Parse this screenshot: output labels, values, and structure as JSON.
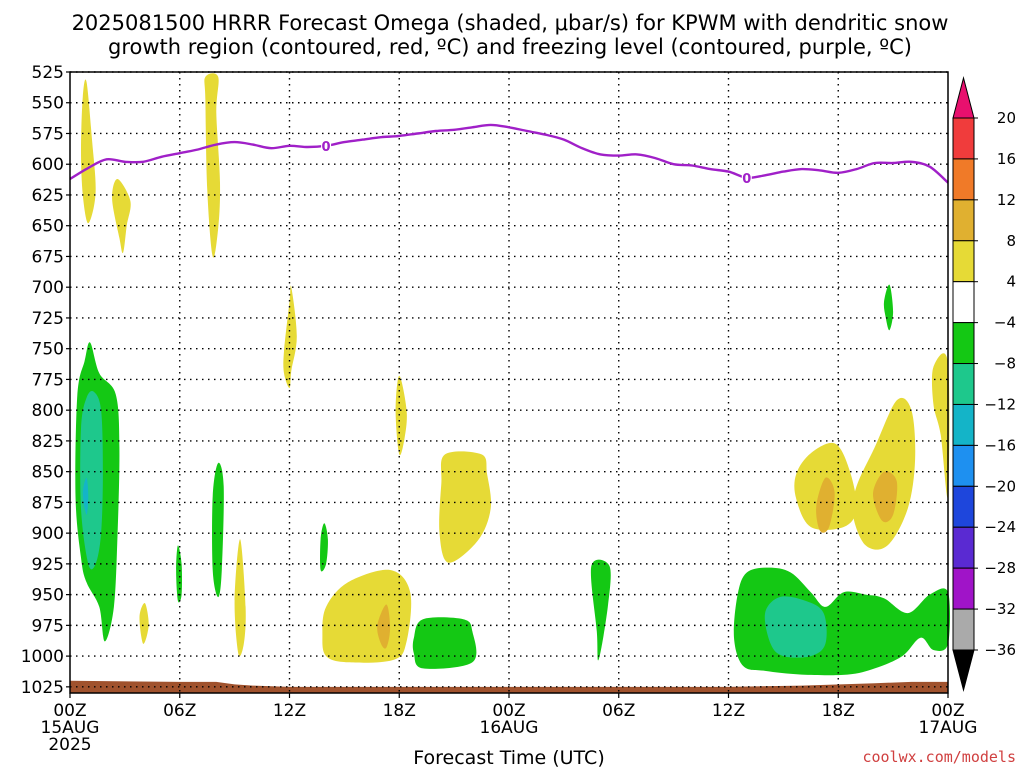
{
  "chart_data": {
    "type": "time-height cross section",
    "title_line1": "2025081500 HRRR Forecast Omega (shaded, μbar/s) for KPWM with dendritic snow",
    "title_line2": "growth region (contoured, red, ºC) and freezing level (contoured, purple, ºC)",
    "xlabel": "Forecast Time (UTC)",
    "credit": "coolwx.com/models",
    "grid": true,
    "y_axis": {
      "ticks": [
        525,
        550,
        575,
        600,
        625,
        650,
        675,
        700,
        725,
        750,
        775,
        800,
        825,
        850,
        875,
        900,
        925,
        950,
        975,
        1000,
        1025
      ],
      "tick_labels": [
        "525",
        "550",
        "575",
        "600",
        "625",
        "650",
        "675",
        "700",
        "725",
        "750",
        "775",
        "800",
        "825",
        "850",
        "875",
        "900",
        "925",
        "950",
        "975",
        "1000",
        "1025"
      ],
      "range": [
        525,
        1030
      ],
      "direction": "pressure decreasing upward"
    },
    "x_axis": {
      "range_hours": [
        0,
        48
      ],
      "ticks": [
        {
          "hour": 0,
          "l1": "00Z",
          "l2": "15AUG",
          "l3": "2025"
        },
        {
          "hour": 6,
          "l1": "06Z",
          "l2": "",
          "l3": ""
        },
        {
          "hour": 12,
          "l1": "12Z",
          "l2": "",
          "l3": ""
        },
        {
          "hour": 18,
          "l1": "18Z",
          "l2": "",
          "l3": ""
        },
        {
          "hour": 24,
          "l1": "00Z",
          "l2": "16AUG",
          "l3": ""
        },
        {
          "hour": 30,
          "l1": "06Z",
          "l2": "",
          "l3": ""
        },
        {
          "hour": 36,
          "l1": "12Z",
          "l2": "",
          "l3": ""
        },
        {
          "hour": 42,
          "l1": "18Z",
          "l2": "",
          "l3": ""
        },
        {
          "hour": 48,
          "l1": "00Z",
          "l2": "17AUG",
          "l3": ""
        }
      ]
    },
    "colorbar": {
      "levels": [
        "20",
        "16",
        "12",
        "8",
        "4",
        "−4",
        "−8",
        "−12",
        "−16",
        "−20",
        "−24",
        "−28",
        "−32",
        "−36"
      ],
      "colors": [
        "#e8106e",
        "#f03c3c",
        "#f07a28",
        "#e0b030",
        "#e6da36",
        "#ffffff",
        "#14c814",
        "#1ec88c",
        "#14b4c8",
        "#1e90f0",
        "#1e46dc",
        "#5a2ad2",
        "#a014c8",
        "#aaaaaa",
        "#000000"
      ]
    },
    "freezing_level": {
      "color": "#a020c8",
      "label": "0",
      "x": [
        0,
        1,
        2,
        3,
        4,
        5,
        6,
        7,
        8,
        9,
        10,
        11,
        12,
        13,
        14,
        15,
        16,
        17,
        18,
        19,
        20,
        21,
        22,
        23,
        24,
        25,
        26,
        27,
        28,
        29,
        30,
        31,
        32,
        33,
        34,
        35,
        36,
        37,
        38,
        39,
        40,
        41,
        42,
        43,
        44,
        45,
        46,
        47,
        48
      ],
      "y": [
        612,
        603,
        596,
        598,
        598,
        594,
        591,
        588,
        584,
        582,
        584,
        587,
        585,
        586,
        585,
        582,
        580,
        578,
        577,
        575,
        573,
        572,
        570,
        568,
        570,
        573,
        576,
        580,
        587,
        592,
        593,
        592,
        595,
        600,
        601,
        604,
        606,
        611,
        609,
        606,
        604,
        605,
        607,
        604,
        599,
        599,
        598,
        602,
        615
      ]
    },
    "omega_regions": [
      {
        "level": "4",
        "color": "#e6da36",
        "points": [
          [
            0.6,
            588
          ],
          [
            0.7,
            545
          ],
          [
            0.9,
            533
          ],
          [
            1.2,
            580
          ],
          [
            1.4,
            623
          ],
          [
            1.0,
            648
          ],
          [
            0.7,
            625
          ]
        ]
      },
      {
        "level": "4",
        "color": "#e6da36",
        "points": [
          [
            2.3,
            628
          ],
          [
            2.6,
            612
          ],
          [
            3.3,
            630
          ],
          [
            3.1,
            650
          ],
          [
            2.9,
            672
          ],
          [
            2.7,
            660
          ]
        ]
      },
      {
        "level": "4",
        "color": "#e6da36",
        "points": [
          [
            7.4,
            548
          ],
          [
            7.4,
            529
          ],
          [
            8.1,
            529
          ],
          [
            8.0,
            558
          ],
          [
            8.2,
            615
          ],
          [
            8.1,
            652
          ],
          [
            7.8,
            675
          ],
          [
            7.5,
            620
          ]
        ]
      },
      {
        "level": "4",
        "color": "#e6da36",
        "points": [
          [
            11.7,
            752
          ],
          [
            12.0,
            712
          ],
          [
            12.1,
            700
          ],
          [
            12.4,
            740
          ],
          [
            12.1,
            768
          ],
          [
            12.0,
            782
          ],
          [
            11.7,
            770
          ]
        ]
      },
      {
        "level": "4",
        "color": "#e6da36",
        "points": [
          [
            17.8,
            800
          ],
          [
            18.0,
            772
          ],
          [
            18.4,
            800
          ],
          [
            18.3,
            822
          ],
          [
            18.0,
            836
          ]
        ]
      },
      {
        "level": "4",
        "color": "#e6da36",
        "points": [
          [
            20.5,
            836
          ],
          [
            22.5,
            836
          ],
          [
            22.8,
            852
          ],
          [
            23.0,
            880
          ],
          [
            22.3,
            906
          ],
          [
            20.7,
            924
          ],
          [
            20.2,
            900
          ],
          [
            20.3,
            860
          ]
        ]
      },
      {
        "level": "4",
        "color": "#e6da36",
        "points": [
          [
            14.0,
            960
          ],
          [
            15.2,
            940
          ],
          [
            17.5,
            930
          ],
          [
            18.6,
            948
          ],
          [
            18.4,
            988
          ],
          [
            17.7,
            1003
          ],
          [
            15.2,
            1005
          ],
          [
            14.0,
            1000
          ],
          [
            13.8,
            983
          ]
        ]
      },
      {
        "level": "4",
        "color": "#e6da36",
        "points": [
          [
            3.8,
            968
          ],
          [
            4.1,
            957
          ],
          [
            4.3,
            975
          ],
          [
            4.0,
            990
          ]
        ]
      },
      {
        "level": "4",
        "color": "#e6da36",
        "points": [
          [
            9.0,
            955
          ],
          [
            9.3,
            905
          ],
          [
            9.6,
            960
          ],
          [
            9.5,
            990
          ],
          [
            9.2,
            998
          ]
        ]
      },
      {
        "level": "4",
        "color": "#e6da36",
        "points": [
          [
            39.7,
            852
          ],
          [
            40.5,
            835
          ],
          [
            41.8,
            827
          ],
          [
            42.6,
            848
          ],
          [
            43.0,
            880
          ],
          [
            42.3,
            895
          ],
          [
            40.5,
            895
          ],
          [
            39.7,
            872
          ]
        ]
      },
      {
        "level": "4",
        "color": "#e6da36",
        "points": [
          [
            43.0,
            862
          ],
          [
            44.0,
            830
          ],
          [
            45.2,
            792
          ],
          [
            46.0,
            800
          ],
          [
            46.2,
            840
          ],
          [
            45.8,
            880
          ],
          [
            44.7,
            910
          ],
          [
            43.5,
            910
          ],
          [
            42.8,
            885
          ]
        ]
      },
      {
        "level": "4",
        "color": "#e6da36",
        "points": [
          [
            47.2,
            765
          ],
          [
            48.0,
            762
          ],
          [
            48.0,
            870
          ],
          [
            47.6,
            820
          ],
          [
            47.2,
            795
          ]
        ]
      },
      {
        "level": "8",
        "color": "#e0b030",
        "points": [
          [
            40.8,
            878
          ],
          [
            41.3,
            855
          ],
          [
            41.8,
            867
          ],
          [
            41.5,
            895
          ],
          [
            41.0,
            898
          ]
        ]
      },
      {
        "level": "8",
        "color": "#e0b030",
        "points": [
          [
            43.9,
            868
          ],
          [
            44.5,
            850
          ],
          [
            45.2,
            858
          ],
          [
            45.0,
            885
          ],
          [
            44.4,
            890
          ]
        ]
      },
      {
        "level": "8",
        "color": "#e0b030",
        "points": [
          [
            16.8,
            975
          ],
          [
            17.3,
            958
          ],
          [
            17.5,
            977
          ],
          [
            17.3,
            993
          ],
          [
            17.0,
            990
          ]
        ]
      },
      {
        "level": "-4",
        "color": "#14c814",
        "points": [
          [
            0.4,
            788
          ],
          [
            0.8,
            760
          ],
          [
            1.1,
            745
          ],
          [
            1.6,
            770
          ],
          [
            2.5,
            787
          ],
          [
            2.7,
            830
          ],
          [
            2.6,
            900
          ],
          [
            2.4,
            960
          ],
          [
            1.9,
            988
          ],
          [
            1.6,
            960
          ],
          [
            0.9,
            940
          ],
          [
            0.6,
            920
          ],
          [
            0.3,
            870
          ]
        ]
      },
      {
        "level": "-4",
        "color": "#14c814",
        "points": [
          [
            7.8,
            870
          ],
          [
            8.1,
            843
          ],
          [
            8.4,
            862
          ],
          [
            8.3,
            930
          ],
          [
            8.1,
            952
          ],
          [
            7.8,
            930
          ]
        ]
      },
      {
        "level": "-4",
        "color": "#14c814",
        "points": [
          [
            5.8,
            930
          ],
          [
            5.9,
            910
          ],
          [
            6.1,
            925
          ],
          [
            6.1,
            950
          ],
          [
            5.9,
            955
          ]
        ]
      },
      {
        "level": "-4",
        "color": "#14c814",
        "points": [
          [
            13.7,
            905
          ],
          [
            13.9,
            892
          ],
          [
            14.1,
            905
          ],
          [
            14.0,
            925
          ],
          [
            13.7,
            930
          ]
        ]
      },
      {
        "level": "-4",
        "color": "#14c814",
        "points": [
          [
            18.8,
            985
          ],
          [
            19.3,
            970
          ],
          [
            21.5,
            970
          ],
          [
            22.0,
            980
          ],
          [
            22.0,
            1005
          ],
          [
            19.3,
            1010
          ],
          [
            18.8,
            998
          ]
        ]
      },
      {
        "level": "-4",
        "color": "#14c814",
        "points": [
          [
            28.5,
            927
          ],
          [
            29.5,
            927
          ],
          [
            29.4,
            960
          ],
          [
            28.9,
            1003
          ],
          [
            28.8,
            980
          ]
        ]
      },
      {
        "level": "-4",
        "color": "#14c814",
        "points": [
          [
            36.5,
            950
          ],
          [
            37.0,
            932
          ],
          [
            38.2,
            928
          ],
          [
            39.4,
            932
          ],
          [
            40.5,
            948
          ],
          [
            41.3,
            960
          ],
          [
            42.3,
            948
          ],
          [
            43.5,
            950
          ],
          [
            44.5,
            953
          ],
          [
            45.8,
            965
          ],
          [
            47.0,
            950
          ],
          [
            48.0,
            948
          ],
          [
            48.0,
            990
          ],
          [
            47.2,
            995
          ],
          [
            46.5,
            985
          ],
          [
            45.5,
            1000
          ],
          [
            44.0,
            1010
          ],
          [
            42.5,
            1015
          ],
          [
            40.0,
            1015
          ],
          [
            38.0,
            1012
          ],
          [
            36.8,
            1008
          ],
          [
            36.3,
            985
          ]
        ]
      },
      {
        "level": "-4",
        "color": "#14c814",
        "points": [
          [
            44.5,
            712
          ],
          [
            44.8,
            698
          ],
          [
            45.0,
            720
          ],
          [
            44.8,
            735
          ],
          [
            44.6,
            725
          ]
        ]
      },
      {
        "level": "-8",
        "color": "#1ec88c",
        "points": [
          [
            0.6,
            815
          ],
          [
            0.9,
            790
          ],
          [
            1.3,
            785
          ],
          [
            1.7,
            800
          ],
          [
            1.8,
            850
          ],
          [
            1.7,
            900
          ],
          [
            1.4,
            925
          ],
          [
            1.0,
            925
          ],
          [
            0.6,
            880
          ]
        ]
      },
      {
        "level": "-8",
        "color": "#1ec88c",
        "points": [
          [
            38.0,
            965
          ],
          [
            38.8,
            952
          ],
          [
            40.2,
            955
          ],
          [
            41.2,
            965
          ],
          [
            41.3,
            990
          ],
          [
            40.5,
            1000
          ],
          [
            39.0,
            1000
          ],
          [
            38.3,
            990
          ]
        ]
      },
      {
        "level": "-12",
        "color": "#14b4c8",
        "points": [
          [
            0.7,
            868
          ],
          [
            0.9,
            855
          ],
          [
            1.0,
            870
          ],
          [
            0.9,
            885
          ]
        ]
      }
    ],
    "surface_layer": {
      "color": "#a0522d",
      "x": [
        0,
        6,
        8,
        9,
        10,
        12,
        18,
        24,
        30,
        36,
        40,
        44,
        46,
        48
      ],
      "y": [
        1020,
        1021,
        1021,
        1023,
        1024,
        1025,
        1025,
        1025,
        1025,
        1025,
        1024,
        1022,
        1021,
        1021
      ]
    }
  }
}
